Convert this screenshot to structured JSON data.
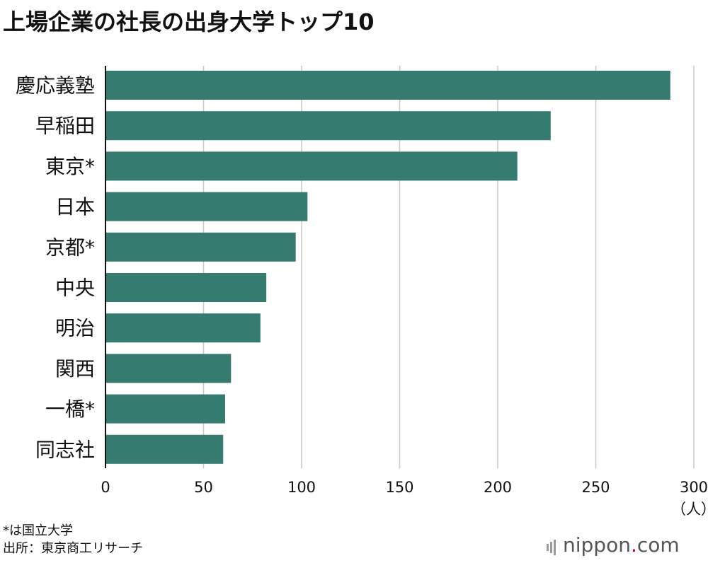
{
  "header": {
    "title": "上場企業の社長の出身大学トップ10"
  },
  "chart_data": {
    "type": "bar",
    "orientation": "horizontal",
    "title": "上場企業の社長の出身大学トップ10",
    "categories": [
      "慶応義塾",
      "早稲田",
      "東京*",
      "日本",
      "京都*",
      "中央",
      "明治",
      "関西",
      "一橋*",
      "同志社"
    ],
    "values": [
      288,
      227,
      210,
      103,
      97,
      82,
      79,
      64,
      61,
      60
    ],
    "xlim": [
      0,
      300
    ],
    "ticks": [
      0,
      50,
      100,
      150,
      200,
      250,
      300
    ],
    "tick_labels": [
      "0",
      "50",
      "100",
      "150",
      "200",
      "250",
      "300"
    ],
    "unit_label": "（人）",
    "grid": true,
    "bar_color": "#357b70"
  },
  "footer": {
    "note": "*は国立大学",
    "source": "出所：東京商工リサーチ",
    "brand_name": "nippon",
    "brand_dot": ".",
    "brand_tld": "com"
  }
}
